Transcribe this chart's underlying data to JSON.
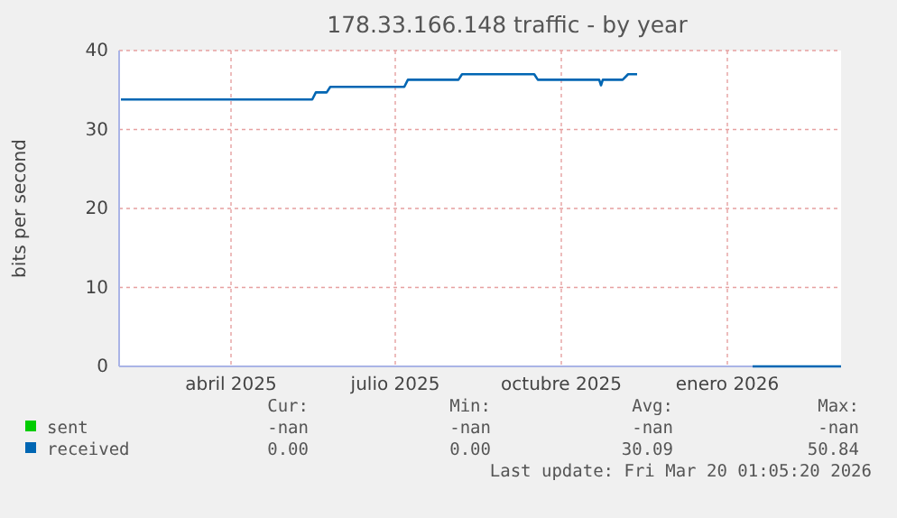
{
  "chart_data": {
    "type": "line",
    "title": "178.33.166.148 traffic - by year",
    "ylabel": "bits per second",
    "x": [
      "2025-02-14",
      "2025-05-31",
      "2025-06-02",
      "2025-06-08",
      "2025-06-10",
      "2025-07-21",
      "2025-07-23",
      "2025-08-20",
      "2025-08-22",
      "2025-10-01",
      "2025-10-03",
      "2025-11-06",
      "2025-11-07",
      "2025-11-08",
      "2025-11-19",
      "2025-11-22",
      "2025-11-27",
      "2025-12-20",
      "2026-01-30",
      "2026-03-20"
    ],
    "series": [
      {
        "name": "sent",
        "color": "#00cc00",
        "values": [
          null,
          null,
          null,
          null,
          null,
          null,
          null,
          null,
          null,
          null,
          null,
          null,
          null,
          null,
          null,
          null,
          null,
          null,
          null,
          null
        ]
      },
      {
        "name": "received",
        "color": "#0066b3",
        "values": [
          33.8,
          33.8,
          34.7,
          34.7,
          35.4,
          35.4,
          36.3,
          36.3,
          37.0,
          37.0,
          36.3,
          36.3,
          35.6,
          36.3,
          36.3,
          37.0,
          37.0,
          null,
          0,
          0
        ]
      }
    ],
    "xlim": [
      "2025-02-13",
      "2026-03-20"
    ],
    "xticks": [
      {
        "value": "2025-04-16",
        "label": "abril 2025"
      },
      {
        "value": "2025-07-16",
        "label": "julio 2025"
      },
      {
        "value": "2025-10-16",
        "label": "octubre 2025"
      },
      {
        "value": "2026-01-16",
        "label": "enero 2026"
      }
    ],
    "ylim": [
      0,
      40
    ],
    "yticks": [
      0,
      10,
      20,
      30,
      40
    ],
    "grid": true,
    "legend": "bottom left",
    "annotations": [
      "Cur:",
      "Min:",
      "Avg:",
      "Max:",
      "-nan",
      "-nan",
      "-nan",
      "-nan",
      "0.00",
      "0.00",
      "30.09",
      "50.84",
      "Last update: Fri Mar 20 01:05:20 2026"
    ]
  }
}
